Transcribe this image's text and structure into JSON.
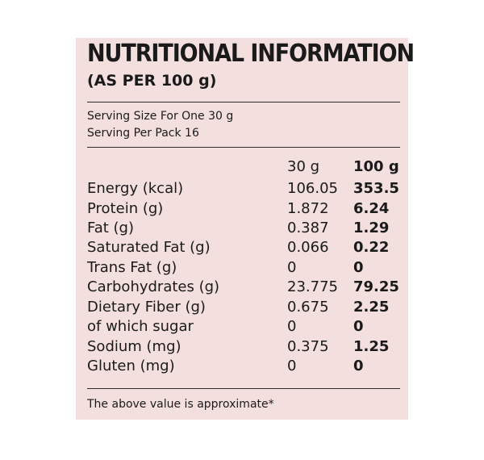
{
  "title": "NUTRITIONAL INFORMATION",
  "subtitle": "(AS PER 100 g)",
  "serving_size": "Serving Size For One 30 g",
  "serving_per_pack": "Serving Per Pack 16",
  "columns": {
    "col1": "30 g",
    "col2": "100 g"
  },
  "rows": [
    {
      "label": "Energy (kcal)",
      "v30": "106.05",
      "v100": "353.5"
    },
    {
      "label": "Protein (g)",
      "v30": "1.872",
      "v100": "6.24"
    },
    {
      "label": "Fat (g)",
      "v30": "0.387",
      "v100": "1.29"
    },
    {
      "label": "Saturated Fat (g)",
      "v30": "0.066",
      "v100": "0.22"
    },
    {
      "label": "Trans Fat (g)",
      "v30": "0",
      "v100": "0"
    },
    {
      "label": "Carbohydrates (g)",
      "v30": "23.775",
      "v100": "79.25"
    },
    {
      "label": "Dietary Fiber (g)",
      "v30": "0.675",
      "v100": "2.25"
    },
    {
      "label": "of which sugar",
      "v30": "0",
      "v100": "0"
    },
    {
      "label": "Sodium (mg)",
      "v30": "0.375",
      "v100": "1.25"
    },
    {
      "label": "Gluten (mg)",
      "v30": "0",
      "v100": "0"
    }
  ],
  "footnote": "The above value is approximate*"
}
